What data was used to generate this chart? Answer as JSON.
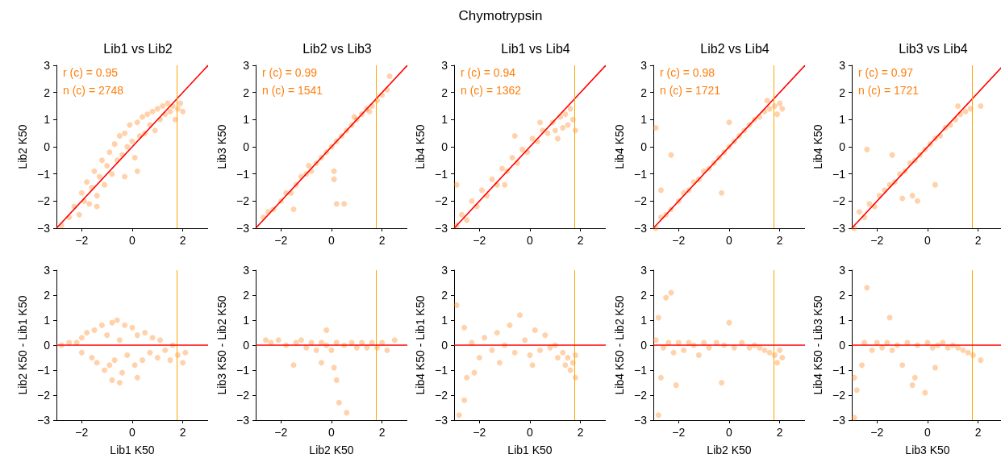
{
  "chart_data": [
    {
      "type": "scatter",
      "title": "Lib1 vs Lib2",
      "ylabel": "Lib2 K50",
      "xlim": [
        -3,
        3
      ],
      "ylim": [
        -3,
        3
      ],
      "xticks": [
        -2,
        0,
        2
      ],
      "yticks": [
        -3,
        -2,
        -1,
        0,
        1,
        2,
        3
      ],
      "grid": false,
      "marker": "circle",
      "annotations": [
        "Chymotrypsin",
        "r (c) = 0.95",
        "n (c) = 2748"
      ],
      "ref_lines": [
        {
          "axis": "x",
          "value": 1.75,
          "color": "#ffa500"
        }
      ],
      "series": [
        {
          "color": "#ff7f0e",
          "x": [
            -2.8,
            -2.5,
            -2.3,
            -2.1,
            -2.0,
            -1.9,
            -1.8,
            -1.7,
            -1.6,
            -1.5,
            -1.4,
            -1.3,
            -1.2,
            -1.1,
            -1.0,
            -0.9,
            -0.8,
            -0.7,
            -0.6,
            -0.5,
            -0.4,
            -0.3,
            -0.2,
            -0.1,
            0,
            0.1,
            0.2,
            0.3,
            0.4,
            0.5,
            0.6,
            0.7,
            0.8,
            0.9,
            1.0,
            1.1,
            1.2,
            1.3,
            1.4,
            1.5,
            1.6,
            1.7,
            1.8,
            1.9,
            2.0,
            -1.4,
            -0.3,
            0.2
          ],
          "values": [
            -2.9,
            -2.6,
            -2.2,
            -2.5,
            -1.7,
            -2.0,
            -1.3,
            -2.1,
            -1.5,
            -0.9,
            -1.8,
            -1.1,
            -0.5,
            -1.4,
            -0.7,
            -0.2,
            -1.0,
            0.1,
            -0.5,
            0.4,
            -0.3,
            0.5,
            0.0,
            0.8,
            0.2,
            -0.4,
            0.9,
            0.4,
            1.1,
            0.5,
            1.2,
            0.8,
            1.3,
            0.6,
            1.4,
            1.0,
            1.5,
            1.2,
            1.6,
            1.3,
            1.5,
            1.0,
            1.4,
            1.6,
            1.3,
            -2.2,
            -1.1,
            -0.9
          ]
        },
        {
          "type": "line",
          "marker": "none",
          "color": "#ff0000",
          "x": [
            -3,
            3
          ],
          "values": [
            -3,
            3
          ]
        }
      ]
    },
    {
      "type": "scatter",
      "title": "Lib2 vs Lib3",
      "ylabel": "Lib3 K50",
      "xlim": [
        -3,
        3
      ],
      "ylim": [
        -3,
        3
      ],
      "xticks": [
        -2,
        0,
        2
      ],
      "yticks": [
        -3,
        -2,
        -1,
        0,
        1,
        2,
        3
      ],
      "grid": false,
      "marker": "circle",
      "annotations": [
        "r (c) = 0.99",
        "n (c) = 1541"
      ],
      "ref_lines": [
        {
          "axis": "x",
          "value": 1.75,
          "color": "#ffa500"
        }
      ],
      "series": [
        {
          "color": "#ff7f0e",
          "x": [
            -2.7,
            -2.5,
            -2.3,
            -2.0,
            -1.8,
            -1.6,
            -1.5,
            -1.4,
            -1.2,
            -1.0,
            -0.8,
            -0.6,
            -0.4,
            -0.2,
            0,
            0.2,
            0.2,
            0.4,
            0.5,
            0.6,
            0.8,
            1.0,
            1.2,
            1.4,
            1.6,
            1.8,
            2.0,
            2.2,
            2.3,
            -0.9,
            0.9,
            1.5,
            0.1,
            0.1
          ],
          "values": [
            -2.6,
            -2.4,
            -2.3,
            -2.0,
            -1.7,
            -1.7,
            -2.3,
            -1.4,
            -1.1,
            -1.0,
            -0.9,
            -0.6,
            -0.4,
            -0.2,
            0,
            0.2,
            -2.1,
            0.4,
            -2.1,
            0.6,
            0.8,
            1.0,
            1.2,
            1.4,
            1.5,
            1.7,
            1.9,
            2.1,
            2.6,
            -0.7,
            1.1,
            1.3,
            -0.9,
            -1.2
          ]
        },
        {
          "type": "line",
          "marker": "none",
          "color": "#ff0000",
          "x": [
            -3,
            3
          ],
          "values": [
            -3,
            3
          ]
        }
      ]
    },
    {
      "type": "scatter",
      "title": "Lib1 vs Lib4",
      "ylabel": "Lib4 K50",
      "xlim": [
        -3,
        3
      ],
      "ylim": [
        -3,
        3
      ],
      "xticks": [
        -2,
        0,
        2
      ],
      "yticks": [
        -3,
        -2,
        -1,
        0,
        1,
        2,
        3
      ],
      "grid": false,
      "marker": "circle",
      "annotations": [
        "r (c) = 0.94",
        "n (c) = 1362"
      ],
      "ref_lines": [
        {
          "axis": "x",
          "value": 1.75,
          "color": "#ffa500"
        }
      ],
      "series": [
        {
          "color": "#ff7f0e",
          "x": [
            -2.9,
            -2.7,
            -2.5,
            -2.3,
            -2.1,
            -1.9,
            -1.7,
            -1.5,
            -1.3,
            -1.1,
            -0.9,
            -0.7,
            -0.5,
            -0.3,
            -0.1,
            0.1,
            0.3,
            0.5,
            0.7,
            0.9,
            1.0,
            1.2,
            1.3,
            1.4,
            1.5,
            1.6,
            1.7,
            1.8,
            -2.9,
            -0.6,
            0.4,
            1.1,
            -1.0
          ],
          "values": [
            -2.9,
            -2.5,
            -2.7,
            -2.0,
            -2.2,
            -1.6,
            -1.8,
            -1.2,
            -1.4,
            -0.8,
            -0.9,
            -0.4,
            -0.6,
            -0.1,
            -0.2,
            0.3,
            0.2,
            0.6,
            0.5,
            0.9,
            0.6,
            1.1,
            0.7,
            1.2,
            0.8,
            1.4,
            1.0,
            0.6,
            -1.4,
            0.4,
            0.9,
            0.3,
            -1.4
          ]
        },
        {
          "type": "line",
          "marker": "none",
          "color": "#ff0000",
          "x": [
            -3,
            3
          ],
          "values": [
            -3,
            3
          ]
        }
      ]
    },
    {
      "type": "scatter",
      "title": "Lib2 vs Lib4",
      "ylabel": "Lib4 K50",
      "xlim": [
        -3,
        3
      ],
      "ylim": [
        -3,
        3
      ],
      "xticks": [
        -2,
        0,
        2
      ],
      "yticks": [
        -3,
        -2,
        -1,
        0,
        1,
        2,
        3
      ],
      "grid": false,
      "marker": "circle",
      "annotations": [
        "r (c) = 0.98",
        "n (c) = 1721"
      ],
      "ref_lines": [
        {
          "axis": "x",
          "value": 1.75,
          "color": "#ffa500"
        }
      ],
      "series": [
        {
          "color": "#ff7f0e",
          "x": [
            -2.9,
            -2.7,
            -2.5,
            -2.3,
            -2.9,
            -2.0,
            -1.8,
            -1.6,
            -1.4,
            -1.2,
            -1.0,
            -0.8,
            -0.6,
            -0.4,
            -0.2,
            0,
            0,
            0.2,
            0.4,
            0.6,
            0.8,
            1.0,
            1.2,
            1.4,
            1.6,
            1.8,
            1.9,
            2.0,
            2.1,
            -0.3,
            -2.7,
            -2.3,
            1.5
          ],
          "values": [
            -3.0,
            -2.6,
            -2.5,
            -2.3,
            0.7,
            -2.0,
            -1.7,
            -1.6,
            -1.3,
            -1.2,
            -0.9,
            -0.8,
            -0.6,
            -0.4,
            -0.2,
            0,
            0.9,
            0.2,
            0.4,
            0.6,
            0.8,
            1.0,
            1.1,
            1.3,
            1.4,
            1.5,
            1.2,
            1.6,
            1.4,
            -1.7,
            -1.6,
            -0.3,
            1.7
          ]
        },
        {
          "type": "line",
          "marker": "none",
          "color": "#ff0000",
          "x": [
            -3,
            3
          ],
          "values": [
            -3,
            3
          ]
        }
      ]
    },
    {
      "type": "scatter",
      "title": "Lib3 vs Lib4",
      "ylabel": "Lib4 K50",
      "xlim": [
        -3,
        3
      ],
      "ylim": [
        -3,
        3
      ],
      "xticks": [
        -2,
        0,
        2
      ],
      "yticks": [
        -3,
        -2,
        -1,
        0,
        1,
        2,
        3
      ],
      "grid": false,
      "marker": "circle",
      "annotations": [
        "r (c) = 0.97",
        "n (c) = 1721"
      ],
      "ref_lines": [
        {
          "axis": "x",
          "value": 1.75,
          "color": "#ffa500"
        }
      ],
      "series": [
        {
          "color": "#ff7f0e",
          "x": [
            -2.9,
            -2.7,
            -2.5,
            -2.3,
            -2.1,
            -1.9,
            -1.7,
            -1.5,
            -1.3,
            -1.1,
            -0.9,
            -0.7,
            -0.5,
            -0.3,
            -0.1,
            0.1,
            0.3,
            0.5,
            0.7,
            0.9,
            1.1,
            1.3,
            1.5,
            1.7,
            -2.4,
            -1.0,
            -0.6,
            -0.4,
            0.3,
            -1.4,
            1.2,
            2.1
          ],
          "values": [
            -3.0,
            -2.4,
            -2.6,
            -2.1,
            -2.2,
            -1.8,
            -1.6,
            -1.4,
            -1.3,
            -1.0,
            -0.9,
            -0.6,
            -0.5,
            -0.3,
            -0.1,
            0.1,
            0.3,
            0.4,
            0.7,
            0.8,
            1.0,
            1.2,
            1.3,
            1.4,
            -0.1,
            -1.9,
            -1.8,
            -2.0,
            -1.4,
            -0.3,
            1.5,
            1.5
          ]
        },
        {
          "type": "line",
          "marker": "none",
          "color": "#ff0000",
          "x": [
            -3,
            3
          ],
          "values": [
            -3,
            3
          ]
        }
      ]
    },
    {
      "type": "scatter",
      "xlabel": "Lib1 K50",
      "ylabel": "Lib2 K50 - Lib1 K50",
      "xlim": [
        -3,
        3
      ],
      "ylim": [
        -3,
        3
      ],
      "xticks": [
        -2,
        0,
        2
      ],
      "yticks": [
        -3,
        -2,
        -1,
        0,
        1,
        2,
        3
      ],
      "grid": false,
      "marker": "circle",
      "ref_lines": [
        {
          "axis": "x",
          "value": 1.75,
          "color": "#ffa500"
        },
        {
          "axis": "y",
          "value": 0,
          "color": "#ff0000"
        }
      ],
      "series": [
        {
          "color": "#ff7f0e",
          "x": [
            -2.8,
            -2.5,
            -2.2,
            -2.0,
            -2.0,
            -1.8,
            -1.6,
            -1.5,
            -1.4,
            -1.2,
            -1.1,
            -1.0,
            -0.9,
            -0.8,
            -0.7,
            -0.6,
            -0.5,
            -0.4,
            -0.3,
            -0.2,
            0,
            0.1,
            0.2,
            0.4,
            0.5,
            0.7,
            0.8,
            1.0,
            1.1,
            1.3,
            1.5,
            1.6,
            1.8,
            2.0,
            2.1,
            -0.8,
            -0.5,
            0.2
          ],
          "values": [
            0.0,
            0.1,
            0.1,
            0.3,
            -0.3,
            0.5,
            -0.5,
            0.6,
            -0.7,
            0.8,
            -1.0,
            0.4,
            -0.8,
            0.9,
            -0.6,
            1.0,
            0.2,
            -1.1,
            0.8,
            -0.4,
            0.7,
            -0.8,
            0.4,
            -0.6,
            0.5,
            -0.3,
            0.3,
            -0.5,
            0.2,
            -0.2,
            -0.6,
            0.0,
            -0.4,
            -0.7,
            -0.3,
            -1.4,
            -1.5,
            -1.3
          ]
        }
      ]
    },
    {
      "type": "scatter",
      "xlabel": "Lib2 K50",
      "ylabel": "Lib3 K50 - Lib2 K50",
      "xlim": [
        -3,
        3
      ],
      "ylim": [
        -3,
        3
      ],
      "xticks": [
        -2,
        0,
        2
      ],
      "yticks": [
        -3,
        -2,
        -1,
        0,
        1,
        2,
        3
      ],
      "grid": false,
      "marker": "circle",
      "ref_lines": [
        {
          "axis": "x",
          "value": 1.75,
          "color": "#ffa500"
        },
        {
          "axis": "y",
          "value": 0,
          "color": "#ff0000"
        }
      ],
      "series": [
        {
          "color": "#ff7f0e",
          "x": [
            -2.6,
            -2.4,
            -2.1,
            -1.8,
            -1.5,
            -1.4,
            -1.2,
            -1.0,
            -0.8,
            -0.6,
            -0.4,
            -0.2,
            -0.2,
            0,
            0.2,
            0.3,
            0.6,
            0.5,
            0.1,
            0.8,
            1.0,
            1.2,
            1.4,
            1.6,
            1.8,
            2.0,
            2.2,
            2.5,
            0.2,
            -0.4
          ],
          "values": [
            0.2,
            0.1,
            0.2,
            0.0,
            -0.8,
            0.1,
            0.2,
            -0.1,
            0.1,
            -0.2,
            0.1,
            0.0,
            0.6,
            -0.2,
            0.1,
            -2.3,
            -2.7,
            0.0,
            -0.9,
            0.1,
            -0.1,
            0.1,
            -0.1,
            0.1,
            -0.1,
            0.1,
            -0.2,
            0.2,
            -1.4,
            -0.7
          ]
        }
      ]
    },
    {
      "type": "scatter",
      "xlabel": "Lib1 K50",
      "ylabel": "Lib4 K50 - Lib1 K50",
      "xlim": [
        -3,
        3
      ],
      "ylim": [
        -3,
        3
      ],
      "xticks": [
        -2,
        0,
        2
      ],
      "yticks": [
        -3,
        -2,
        -1,
        0,
        1,
        2,
        3
      ],
      "grid": false,
      "marker": "circle",
      "ref_lines": [
        {
          "axis": "x",
          "value": 1.75,
          "color": "#ffa500"
        },
        {
          "axis": "y",
          "value": 0,
          "color": "#ff0000"
        }
      ],
      "series": [
        {
          "color": "#ff7f0e",
          "x": [
            -2.9,
            -2.8,
            -2.6,
            -2.5,
            -2.3,
            -2.0,
            -1.8,
            -1.5,
            -1.3,
            -1.0,
            -0.8,
            -0.6,
            -0.4,
            -0.2,
            0,
            0.2,
            0.4,
            0.6,
            0.8,
            1.0,
            1.1,
            1.3,
            1.4,
            1.5,
            1.6,
            1.7,
            1.8,
            1.8,
            -2.2,
            -1.2,
            0.1,
            -2.6
          ],
          "values": [
            1.6,
            -2.8,
            -2.2,
            -1.3,
            0.1,
            -0.5,
            0.3,
            -0.2,
            0.5,
            0.0,
            0.8,
            -0.3,
            1.2,
            0.2,
            -0.4,
            0.6,
            -0.2,
            0.4,
            -0.1,
            0.0,
            -0.5,
            -0.3,
            -0.8,
            -0.5,
            -1.0,
            -0.7,
            -1.3,
            -0.4,
            -1.1,
            -0.7,
            -0.8,
            0.7
          ]
        }
      ]
    },
    {
      "type": "scatter",
      "xlabel": "Lib2 K50",
      "ylabel": "Lib4 K50 - Lib2 K50",
      "xlim": [
        -3,
        3
      ],
      "ylim": [
        -3,
        3
      ],
      "xticks": [
        -2,
        0,
        2
      ],
      "yticks": [
        -3,
        -2,
        -1,
        0,
        1,
        2,
        3
      ],
      "grid": false,
      "marker": "circle",
      "ref_lines": [
        {
          "axis": "x",
          "value": 1.75,
          "color": "#ffa500"
        },
        {
          "axis": "y",
          "value": 0,
          "color": "#ff0000"
        }
      ],
      "series": [
        {
          "color": "#ff7f0e",
          "x": [
            -2.9,
            -2.8,
            -2.7,
            -2.6,
            -2.4,
            -2.3,
            -2.2,
            -2.0,
            -1.8,
            -1.6,
            -1.4,
            -1.2,
            -1.0,
            -0.8,
            -0.5,
            -0.2,
            0,
            0.2,
            0.5,
            0.8,
            1.0,
            1.2,
            1.4,
            1.6,
            1.8,
            1.9,
            2.0,
            2.1,
            -2.8,
            -2.1,
            -0.3,
            -2.5
          ],
          "values": [
            0.2,
            -2.8,
            -1.3,
            -0.1,
            0.1,
            2.1,
            -0.3,
            0.1,
            -0.2,
            0.1,
            0.0,
            -0.4,
            0.1,
            -0.1,
            0.1,
            0.0,
            0.9,
            -0.1,
            0.1,
            -0.1,
            0.0,
            -0.1,
            -0.2,
            -0.3,
            -0.4,
            -0.7,
            -0.2,
            -0.5,
            1.1,
            -1.6,
            -1.5,
            1.9
          ]
        }
      ]
    },
    {
      "type": "scatter",
      "xlabel": "Lib3 K50",
      "ylabel": "Lib4 K50 - Lib3 K50",
      "xlim": [
        -3,
        3
      ],
      "ylim": [
        -3,
        3
      ],
      "xticks": [
        -2,
        0,
        2
      ],
      "yticks": [
        -3,
        -2,
        -1,
        0,
        1,
        2,
        3
      ],
      "grid": false,
      "marker": "circle",
      "ref_lines": [
        {
          "axis": "x",
          "value": 1.75,
          "color": "#ffa500"
        },
        {
          "axis": "y",
          "value": 0,
          "color": "#ff0000"
        }
      ],
      "series": [
        {
          "color": "#ff7f0e",
          "x": [
            -2.9,
            -2.8,
            -2.6,
            -2.5,
            -2.4,
            -2.2,
            -2.0,
            -1.8,
            -1.6,
            -1.4,
            -1.2,
            -1.0,
            -0.8,
            -0.5,
            -0.4,
            -0.1,
            0,
            0.2,
            0.4,
            0.6,
            0.8,
            1.0,
            1.2,
            1.4,
            1.6,
            1.8,
            2.1,
            -1.5,
            0.3,
            -2.9,
            -0.6
          ],
          "values": [
            -2.9,
            -1.8,
            -0.8,
            0.1,
            2.3,
            -0.2,
            0.1,
            -0.1,
            0.1,
            -0.2,
            0.0,
            -0.8,
            0.1,
            -1.3,
            0.0,
            -1.9,
            0.1,
            -0.1,
            0.0,
            0.1,
            -0.1,
            0.0,
            -0.1,
            -0.2,
            -0.3,
            -0.4,
            -0.6,
            1.1,
            -0.9,
            -1.3,
            -1.6
          ]
        }
      ]
    }
  ]
}
